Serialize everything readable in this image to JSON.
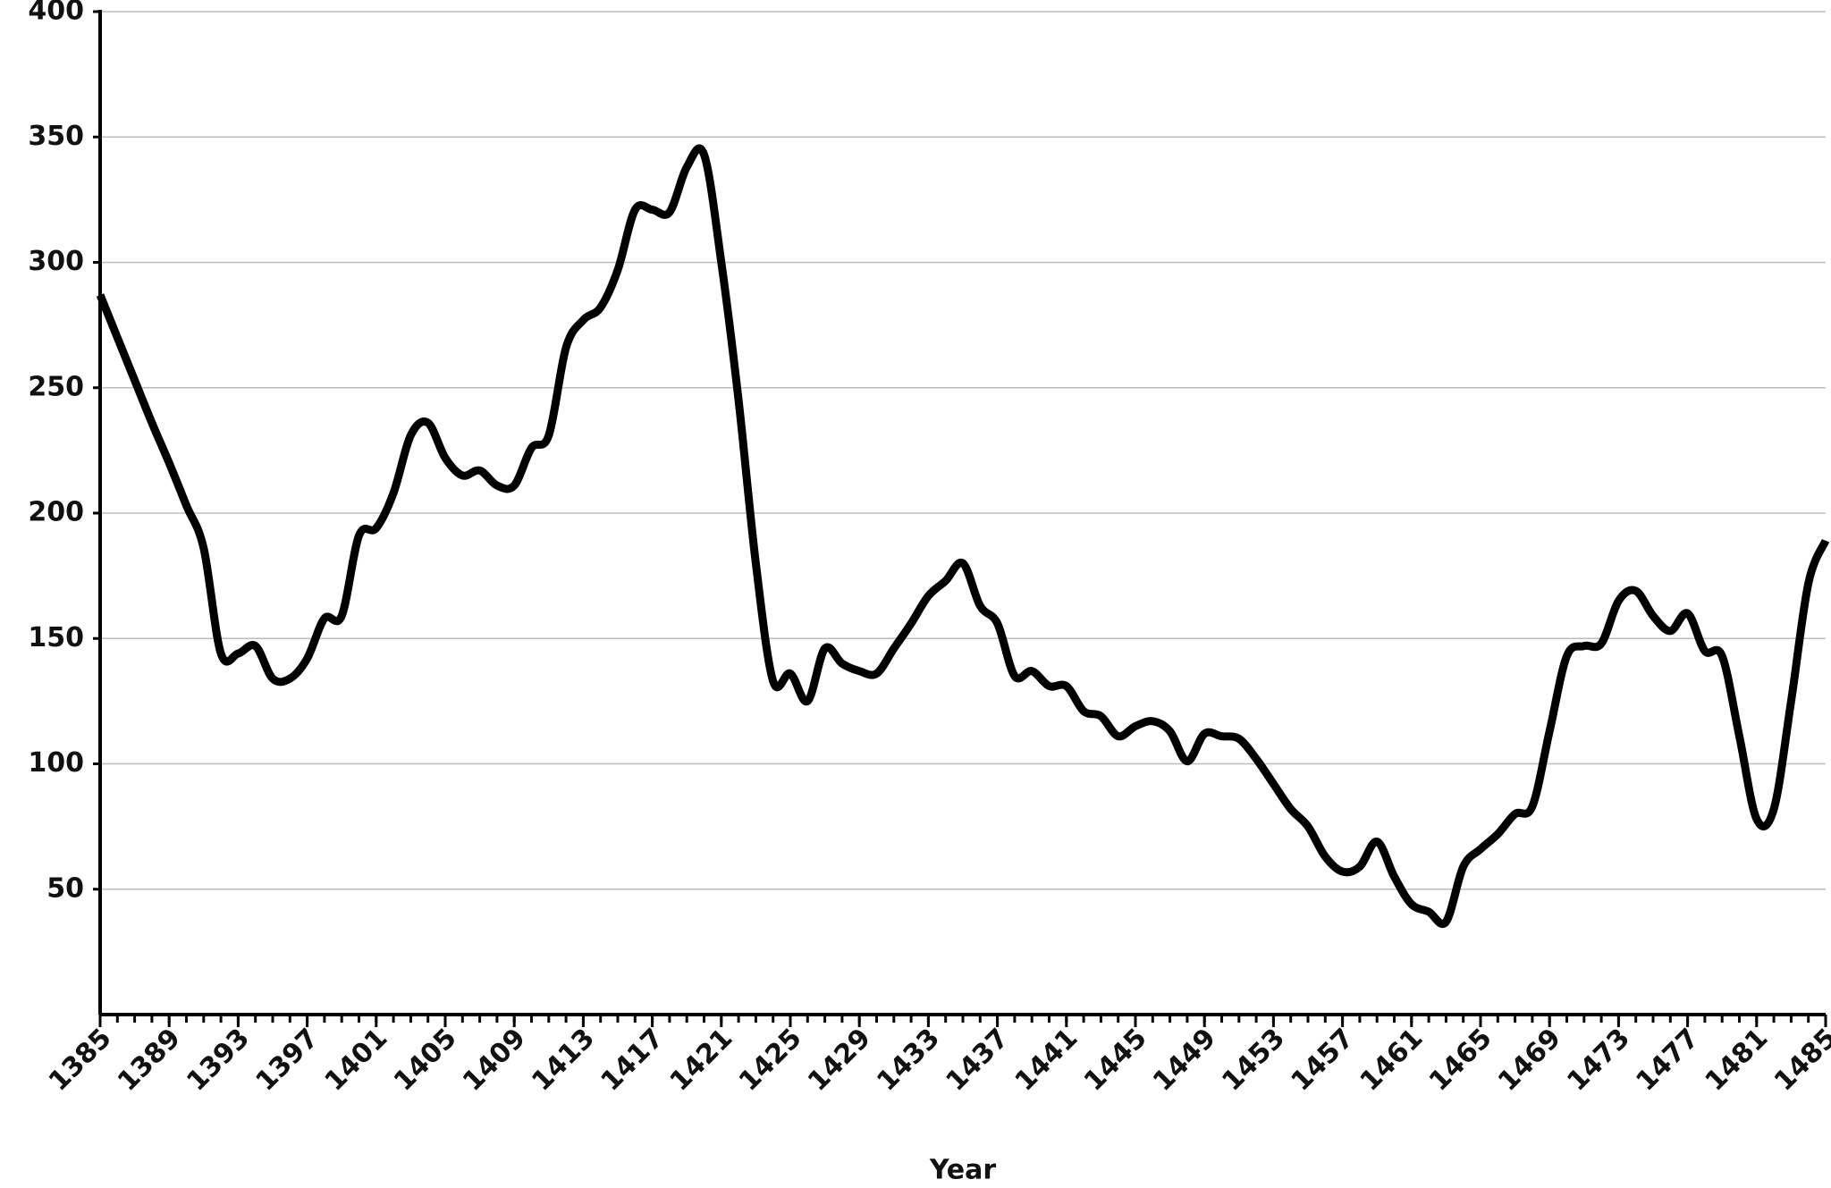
{
  "chart_data": {
    "type": "line",
    "x_label": "Year",
    "x": [
      1385,
      1386,
      1387,
      1388,
      1389,
      1390,
      1391,
      1392,
      1393,
      1394,
      1395,
      1396,
      1397,
      1398,
      1399,
      1400,
      1401,
      1402,
      1403,
      1404,
      1405,
      1406,
      1407,
      1408,
      1409,
      1410,
      1411,
      1412,
      1413,
      1414,
      1415,
      1416,
      1417,
      1418,
      1419,
      1420,
      1421,
      1422,
      1423,
      1424,
      1425,
      1426,
      1427,
      1428,
      1429,
      1430,
      1431,
      1432,
      1433,
      1434,
      1435,
      1436,
      1437,
      1438,
      1439,
      1440,
      1441,
      1442,
      1443,
      1444,
      1445,
      1446,
      1447,
      1448,
      1449,
      1450,
      1451,
      1452,
      1453,
      1454,
      1455,
      1456,
      1457,
      1458,
      1459,
      1460,
      1461,
      1462,
      1463,
      1464,
      1465,
      1466,
      1467,
      1468,
      1469,
      1470,
      1471,
      1472,
      1473,
      1474,
      1475,
      1476,
      1477,
      1478,
      1479,
      1480,
      1481,
      1482,
      1483,
      1484,
      1485
    ],
    "values": [
      287,
      270,
      253,
      236,
      220,
      203,
      186,
      144,
      144,
      147,
      134,
      134,
      142,
      158,
      159,
      191,
      194,
      208,
      231,
      236,
      222,
      215,
      217,
      211,
      211,
      226,
      231,
      266,
      277,
      282,
      297,
      321,
      321,
      320,
      338,
      343,
      300,
      245,
      180,
      133,
      136,
      125,
      146,
      140,
      137,
      136,
      146,
      156,
      167,
      173,
      180,
      163,
      156,
      135,
      137,
      131,
      131,
      121,
      119,
      111,
      115,
      117,
      113,
      101,
      112,
      111,
      110,
      102,
      92,
      82,
      75,
      63,
      57,
      59,
      69,
      55,
      44,
      41,
      37,
      59,
      66,
      72,
      80,
      83,
      113,
      143,
      147,
      148,
      165,
      169,
      159,
      153,
      160,
      145,
      143,
      111,
      78,
      82,
      125,
      172,
      189
    ],
    "color": "#000000",
    "xlim": [
      1385,
      1485
    ],
    "xticks": [
      1385,
      1389,
      1393,
      1397,
      1401,
      1405,
      1409,
      1413,
      1417,
      1421,
      1425,
      1429,
      1433,
      1437,
      1441,
      1445,
      1449,
      1453,
      1457,
      1461,
      1465,
      1469,
      1473,
      1477,
      1481,
      1485
    ],
    "ylim": [
      0,
      400
    ],
    "yticks": [
      50,
      100,
      150,
      200,
      250,
      300,
      350,
      400
    ],
    "grid": true
  }
}
